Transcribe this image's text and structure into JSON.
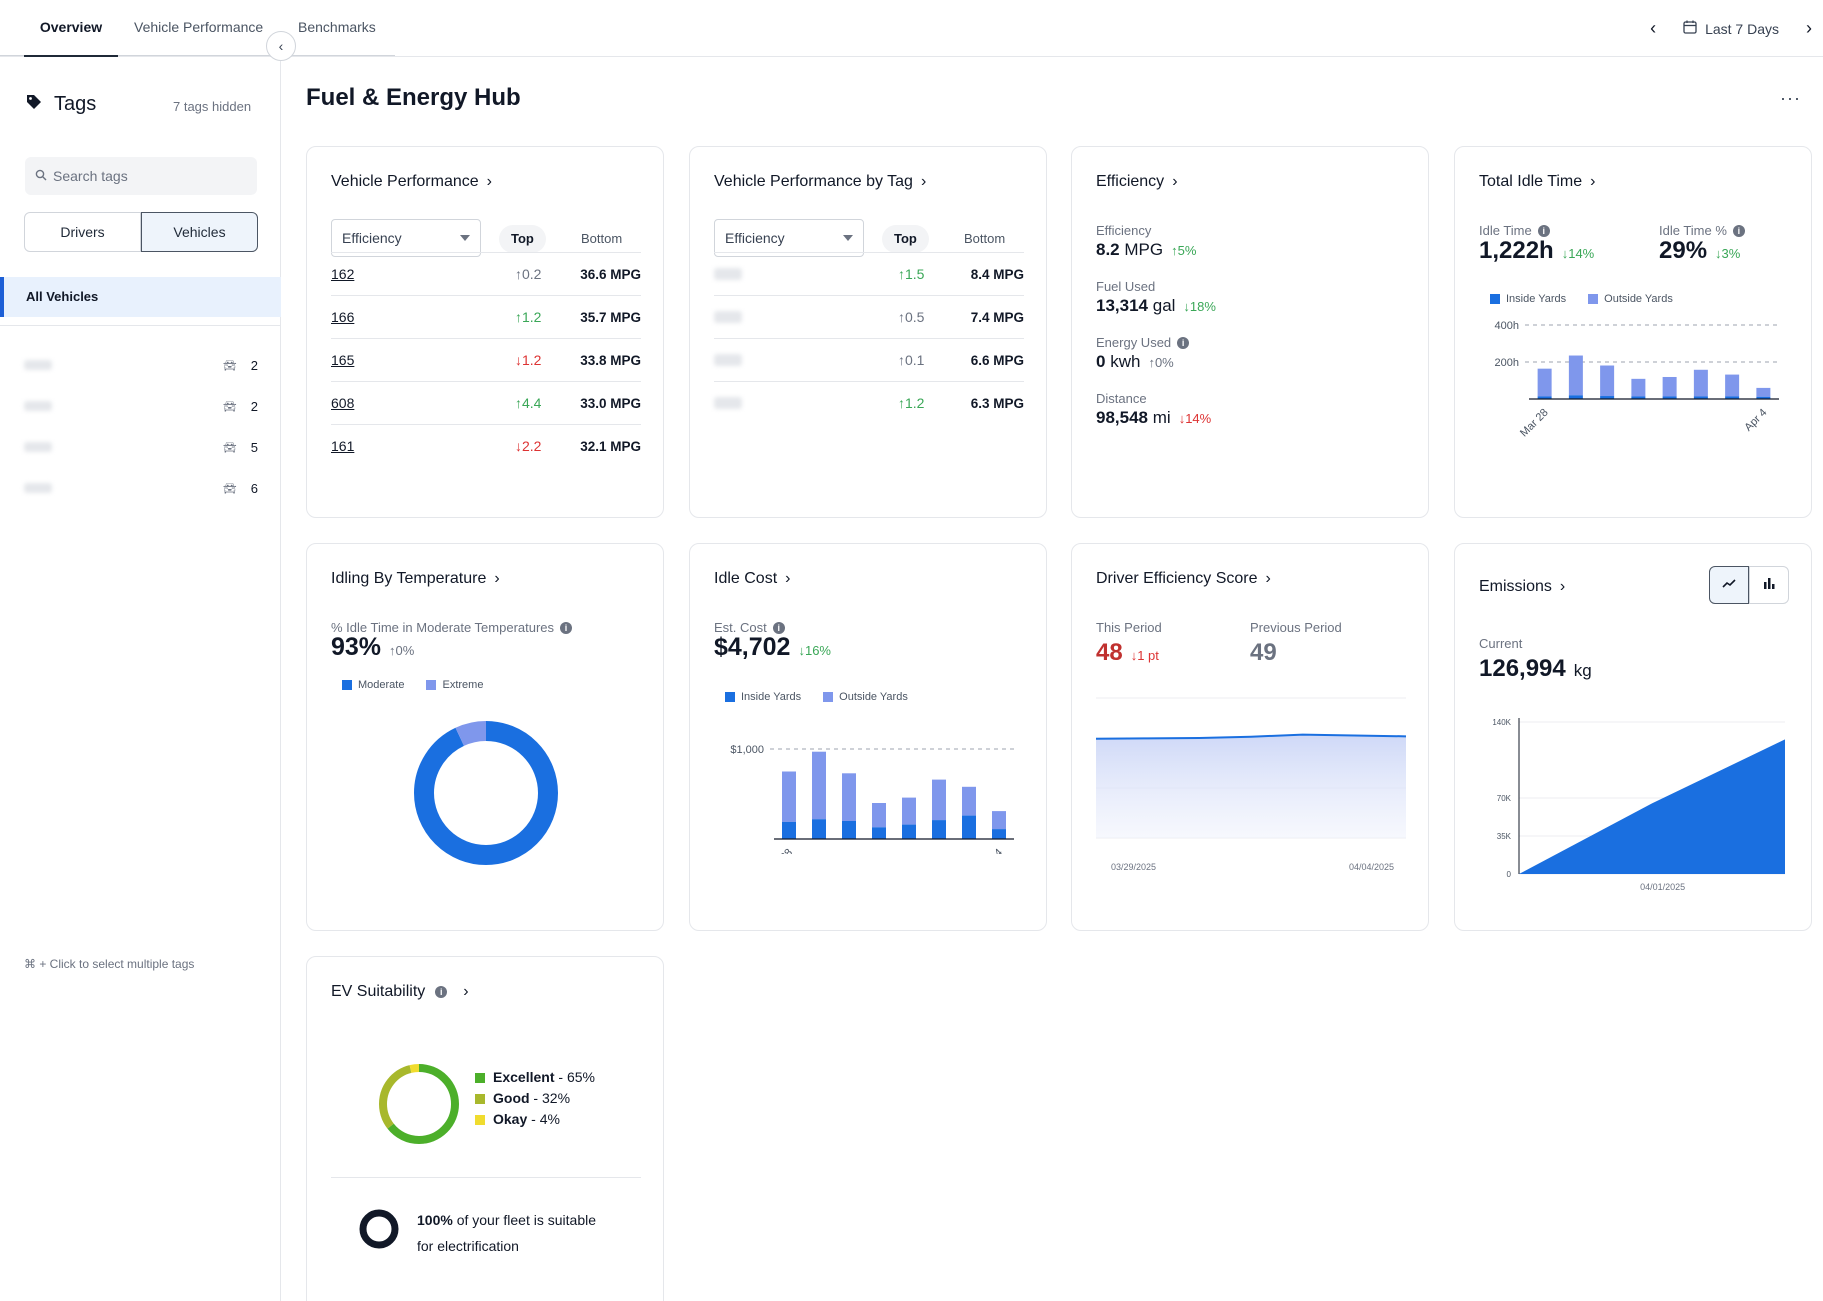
{
  "topnav": {
    "tabs": [
      {
        "label": "Overview",
        "active": true
      },
      {
        "label": "Vehicle Performance",
        "active": false
      },
      {
        "label": "Benchmarks",
        "active": false
      }
    ],
    "date_range": "Last 7 Days"
  },
  "sidebar": {
    "title": "Tags",
    "hidden_count": "7 tags hidden",
    "search_placeholder": "Search tags",
    "segments": [
      "Drivers",
      "Vehicles"
    ],
    "selected_segment": "Vehicles",
    "all_label": "All Vehicles",
    "tags": [
      {
        "count": "2"
      },
      {
        "count": "2"
      },
      {
        "count": "5"
      },
      {
        "count": "6"
      }
    ],
    "hint": "⌘ + Click to select multiple tags"
  },
  "page": {
    "title": "Fuel & Energy Hub"
  },
  "vehicle_performance": {
    "title": "Vehicle Performance",
    "metric": "Efficiency",
    "top_label": "Top",
    "bottom_label": "Bottom",
    "rows": [
      {
        "name": "162",
        "dir": "up",
        "trend": "neutral",
        "delta": "0.2",
        "value": "36.6 MPG"
      },
      {
        "name": "166",
        "dir": "up",
        "trend": "good",
        "delta": "1.2",
        "value": "35.7 MPG"
      },
      {
        "name": "165",
        "dir": "down",
        "trend": "bad",
        "delta": "1.2",
        "value": "33.8 MPG"
      },
      {
        "name": "608",
        "dir": "up",
        "trend": "good",
        "delta": "4.4",
        "value": "33.0 MPG"
      },
      {
        "name": "161",
        "dir": "down",
        "trend": "bad",
        "delta": "2.2",
        "value": "32.1 MPG"
      }
    ]
  },
  "vehicle_performance_by_tag": {
    "title": "Vehicle Performance by Tag",
    "metric": "Efficiency",
    "top_label": "Top",
    "bottom_label": "Bottom",
    "rows": [
      {
        "dir": "up",
        "trend": "good",
        "delta": "1.5",
        "value": "8.4 MPG"
      },
      {
        "dir": "up",
        "trend": "neutral",
        "delta": "0.5",
        "value": "7.4 MPG"
      },
      {
        "dir": "up",
        "trend": "neutral",
        "delta": "0.1",
        "value": "6.6 MPG"
      },
      {
        "dir": "up",
        "trend": "good",
        "delta": "1.2",
        "value": "6.3 MPG"
      }
    ]
  },
  "efficiency": {
    "title": "Efficiency",
    "items": [
      {
        "label": "Efficiency",
        "value": "8.2",
        "unit": "MPG",
        "dir": "up",
        "trend": "good",
        "delta": "5%",
        "info": false
      },
      {
        "label": "Fuel Used",
        "value": "13,314",
        "unit": "gal",
        "dir": "down",
        "trend": "good",
        "delta": "18%",
        "info": false
      },
      {
        "label": "Energy Used",
        "value": "0",
        "unit": "kwh",
        "dir": "up",
        "trend": "neutral",
        "delta": "0%",
        "info": true
      },
      {
        "label": "Distance",
        "value": "98,548",
        "unit": "mi",
        "dir": "down",
        "trend": "bad",
        "delta": "14%",
        "info": false
      }
    ]
  },
  "idle_time": {
    "title": "Total Idle Time",
    "metric1_label": "Idle Time",
    "metric1_value": "1,222h",
    "metric1_delta": "14%",
    "metric2_label": "Idle Time %",
    "metric2_value": "29%",
    "metric2_delta": "3%",
    "legend": [
      "Inside Yards",
      "Outside Yards"
    ]
  },
  "idle_temp": {
    "title": "Idling By Temperature",
    "label": "% Idle Time in Moderate Temperatures",
    "value": "93%",
    "delta": "0%",
    "legend": [
      "Moderate",
      "Extreme"
    ]
  },
  "idle_cost": {
    "title": "Idle Cost",
    "label": "Est. Cost",
    "value": "$4,702",
    "delta": "16%",
    "legend": [
      "Inside Yards",
      "Outside Yards"
    ]
  },
  "driver_score": {
    "title": "Driver Efficiency Score",
    "this_label": "This Period",
    "this_value": "48",
    "this_delta": "1 pt",
    "prev_label": "Previous Period",
    "prev_value": "49"
  },
  "emissions": {
    "title": "Emissions",
    "label": "Current",
    "value": "126,994",
    "unit": "kg"
  },
  "ev": {
    "title": "EV Suitability",
    "legend": [
      {
        "label": "Excellent",
        "pct": "65%",
        "color": "#4caf2a"
      },
      {
        "label": "Good",
        "pct": "32%",
        "color": "#a8b82c"
      },
      {
        "label": "Okay",
        "pct": "4%",
        "color": "#f0dc2e"
      }
    ],
    "summary_pct": "100%",
    "summary_text": " of your fleet is suitable",
    "summary_text2": "for electrification"
  },
  "colors": {
    "primary": "#1a6fe0",
    "secondary": "#7f97ec",
    "up": "#3aa757",
    "down": "#d33",
    "neutral": "#6b7280"
  },
  "chart_data": [
    {
      "type": "bar",
      "chart": "idle_time",
      "categories": [
        "Mar 28",
        "Mar 29",
        "Mar 30",
        "Mar 31",
        "Apr 1",
        "Apr 2",
        "Apr 3",
        "Apr 4"
      ],
      "series": [
        {
          "name": "Inside Yards",
          "values": [
            14,
            20,
            16,
            14,
            14,
            14,
            14,
            12
          ]
        },
        {
          "name": "Outside Yards",
          "values": [
            150,
            215,
            165,
            95,
            105,
            144,
            118,
            48
          ]
        }
      ],
      "yticks": [
        "200h",
        "400h"
      ],
      "ylim": [
        0,
        400
      ],
      "xtick_labels": [
        "Mar 28",
        "Apr 4"
      ]
    },
    {
      "type": "pie",
      "chart": "idle_temp",
      "categories": [
        "Moderate",
        "Extreme"
      ],
      "values": [
        93,
        7
      ]
    },
    {
      "type": "bar",
      "chart": "idle_cost",
      "categories": [
        "Mar 28",
        "Mar 29",
        "Mar 30",
        "Mar 31",
        "Apr 1",
        "Apr 2",
        "Apr 3",
        "Apr 4"
      ],
      "series": [
        {
          "name": "Inside Yards",
          "values": [
            190,
            220,
            200,
            130,
            160,
            210,
            260,
            110
          ]
        },
        {
          "name": "Outside Yards",
          "values": [
            560,
            750,
            530,
            270,
            300,
            450,
            320,
            200
          ]
        }
      ],
      "yticks": [
        "$1,000"
      ],
      "ylim": [
        0,
        1000
      ],
      "xtick_labels": [
        "Mar 28",
        "Apr 4"
      ]
    },
    {
      "type": "area",
      "chart": "driver_score",
      "x": [
        "03/29/2025",
        "03/30/2025",
        "03/31/2025",
        "04/01/2025",
        "04/02/2025",
        "04/03/2025",
        "04/04/2025"
      ],
      "values": [
        48,
        48.2,
        48.4,
        49,
        50,
        49.6,
        49.2
      ],
      "xtick_labels": [
        "03/29/2025",
        "04/04/2025"
      ]
    },
    {
      "type": "area",
      "chart": "emissions",
      "x": [
        "03/29/2025",
        "04/01/2025",
        "04/04/2025"
      ],
      "values": [
        0,
        65000,
        124000
      ],
      "yticks": [
        "0",
        "35K",
        "70K",
        "140K"
      ],
      "ylim": [
        0,
        140000
      ],
      "xtick_labels": [
        "04/01/2025"
      ]
    },
    {
      "type": "pie",
      "chart": "ev_suitability",
      "categories": [
        "Excellent",
        "Good",
        "Okay"
      ],
      "values": [
        65,
        32,
        4
      ]
    }
  ]
}
